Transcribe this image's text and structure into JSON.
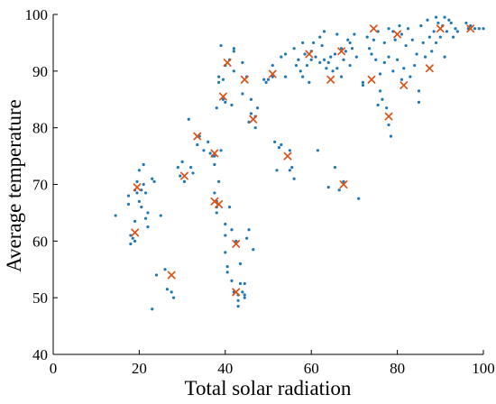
{
  "chart_data": {
    "type": "scatter",
    "title": "",
    "xlabel": "Total solar radiation",
    "ylabel": "Average temperature",
    "xlim": [
      0,
      100
    ],
    "ylim": [
      40,
      100
    ],
    "xticks": [
      "0",
      "20",
      "40",
      "60",
      "80",
      "100"
    ],
    "yticks": [
      "40",
      "50",
      "60",
      "70",
      "80",
      "90",
      "100"
    ],
    "grid": false,
    "legend": "none",
    "series": [
      {
        "marker": "dot",
        "color": "#1f77b4",
        "points": [
          [
            14.5,
            64.5
          ],
          [
            17.5,
            68
          ],
          [
            17.5,
            66.5
          ],
          [
            18,
            61
          ],
          [
            18,
            59.5
          ],
          [
            18.5,
            60.5
          ],
          [
            19,
            60
          ],
          [
            19,
            63.5
          ],
          [
            19.5,
            68.5
          ],
          [
            19.5,
            70.5
          ],
          [
            20,
            67
          ],
          [
            20,
            72.5
          ],
          [
            20.5,
            66
          ],
          [
            20.5,
            69
          ],
          [
            21,
            73.5
          ],
          [
            21,
            70
          ],
          [
            21.5,
            68.5
          ],
          [
            21.5,
            64
          ],
          [
            22,
            65
          ],
          [
            22,
            62.5
          ],
          [
            23,
            71
          ],
          [
            23,
            48
          ],
          [
            23.5,
            70.5
          ],
          [
            24,
            54
          ],
          [
            25,
            64.5
          ],
          [
            26,
            55
          ],
          [
            26.5,
            51.5
          ],
          [
            27.5,
            51
          ],
          [
            28,
            50
          ],
          [
            29,
            73
          ],
          [
            29.5,
            71.5
          ],
          [
            30,
            74
          ],
          [
            30.5,
            70.5
          ],
          [
            31.5,
            81.5
          ],
          [
            32,
            73
          ],
          [
            32.5,
            72
          ],
          [
            33.5,
            77
          ],
          [
            34,
            78.5
          ],
          [
            35,
            76
          ],
          [
            36,
            77.5
          ],
          [
            36.5,
            75.5
          ],
          [
            37,
            75
          ],
          [
            37.5,
            75
          ],
          [
            37.5,
            73.5
          ],
          [
            37.5,
            68.5
          ],
          [
            38,
            67
          ],
          [
            38,
            66
          ],
          [
            38,
            65
          ],
          [
            38.5,
            70.5
          ],
          [
            38.5,
            88
          ],
          [
            38.5,
            89
          ],
          [
            38,
            83.5
          ],
          [
            39,
            94.5
          ],
          [
            39,
            76
          ],
          [
            39.5,
            85
          ],
          [
            39.5,
            88.5
          ],
          [
            40,
            91
          ],
          [
            40,
            84.5
          ],
          [
            40,
            63
          ],
          [
            40,
            61
          ],
          [
            40,
            58
          ],
          [
            40.5,
            55.5
          ],
          [
            40.5,
            54.5
          ],
          [
            41,
            92
          ],
          [
            41,
            66
          ],
          [
            41.5,
            84
          ],
          [
            41.5,
            62
          ],
          [
            41.5,
            53
          ],
          [
            42,
            93.5
          ],
          [
            42,
            94
          ],
          [
            42,
            90
          ],
          [
            42,
            51
          ],
          [
            42.5,
            60
          ],
          [
            43,
            49.5
          ],
          [
            43,
            48.5
          ],
          [
            43,
            50.5
          ],
          [
            43.5,
            56
          ],
          [
            43.5,
            52.5
          ],
          [
            44,
            51
          ],
          [
            44,
            91.5
          ],
          [
            44,
            86
          ],
          [
            44.5,
            50.5
          ],
          [
            44.5,
            50
          ],
          [
            45,
            60.5
          ],
          [
            45,
            89
          ],
          [
            45.5,
            81
          ],
          [
            45.5,
            62
          ],
          [
            46,
            85
          ],
          [
            46,
            82.5
          ],
          [
            46.5,
            58.5
          ],
          [
            47,
            82
          ],
          [
            47,
            80
          ],
          [
            47.5,
            83.5
          ],
          [
            49,
            88.5
          ],
          [
            49.5,
            88
          ],
          [
            50,
            88.5
          ],
          [
            51,
            91
          ],
          [
            51,
            89
          ],
          [
            51.5,
            77.5
          ],
          [
            52,
            72.5
          ],
          [
            52.5,
            76.5
          ],
          [
            53,
            77
          ],
          [
            53,
            92.5
          ],
          [
            54,
            89
          ],
          [
            54,
            93
          ],
          [
            55,
            76
          ],
          [
            55,
            72.5
          ],
          [
            55.5,
            73
          ],
          [
            56,
            94
          ],
          [
            56,
            71
          ],
          [
            56.5,
            91
          ],
          [
            57,
            92
          ],
          [
            57.5,
            90
          ],
          [
            58,
            95
          ],
          [
            58,
            89
          ],
          [
            58.5,
            93
          ],
          [
            59,
            91
          ],
          [
            59.5,
            88
          ],
          [
            60,
            93.5
          ],
          [
            60,
            92
          ],
          [
            60.5,
            95
          ],
          [
            61,
            92.5
          ],
          [
            61.5,
            76
          ],
          [
            62,
            96
          ],
          [
            62,
            91.5
          ],
          [
            62.5,
            94.5
          ],
          [
            63,
            97
          ],
          [
            63,
            92
          ],
          [
            63.5,
            90.5
          ],
          [
            64,
            91.5
          ],
          [
            64,
            69.5
          ],
          [
            64.5,
            92.5
          ],
          [
            65,
            90
          ],
          [
            65.5,
            73
          ],
          [
            65.5,
            93
          ],
          [
            66,
            96.5
          ],
          [
            66,
            90.5
          ],
          [
            66.5,
            69
          ],
          [
            67,
            94
          ],
          [
            67,
            89
          ],
          [
            67.5,
            92
          ],
          [
            67.5,
            70.5
          ],
          [
            68,
            93.5
          ],
          [
            68.5,
            95.5
          ],
          [
            69,
            95
          ],
          [
            69,
            91
          ],
          [
            69.5,
            94
          ],
          [
            70,
            96.5
          ],
          [
            70.5,
            92.5
          ],
          [
            71,
            67.5
          ],
          [
            72,
            88
          ],
          [
            72,
            87.5
          ],
          [
            73,
            96
          ],
          [
            73.5,
            94
          ],
          [
            74,
            93
          ],
          [
            74.5,
            95.5
          ],
          [
            75,
            92
          ],
          [
            75.5,
            97
          ],
          [
            75.5,
            84
          ],
          [
            76,
            89.5
          ],
          [
            76,
            86.5
          ],
          [
            76.5,
            85
          ],
          [
            77,
            95
          ],
          [
            77,
            91.5
          ],
          [
            77.5,
            83.5
          ],
          [
            78,
            97.5
          ],
          [
            78,
            92.5
          ],
          [
            78,
            80.5
          ],
          [
            78.5,
            78.5
          ],
          [
            79,
            97
          ],
          [
            79,
            90
          ],
          [
            79.5,
            95.5
          ],
          [
            80,
            92
          ],
          [
            80.5,
            98
          ],
          [
            81,
            96.5
          ],
          [
            81,
            88.5
          ],
          [
            81.5,
            90.5
          ],
          [
            82,
            94.5
          ],
          [
            82.5,
            97.5
          ],
          [
            83,
            89
          ],
          [
            83.5,
            95.5
          ],
          [
            84,
            91
          ],
          [
            84.5,
            93
          ],
          [
            85,
            86.5
          ],
          [
            85,
            84.5
          ],
          [
            85.5,
            98
          ],
          [
            86,
            95
          ],
          [
            86.5,
            92.5
          ],
          [
            87,
            99
          ],
          [
            87.5,
            96
          ],
          [
            88,
            93.5
          ],
          [
            88.5,
            97
          ],
          [
            89,
            99.5
          ],
          [
            89,
            95
          ],
          [
            89.5,
            98.5
          ],
          [
            90,
            96
          ],
          [
            90.5,
            98
          ],
          [
            91,
            99.5
          ],
          [
            91,
            92.5
          ],
          [
            91.5,
            97
          ],
          [
            92,
            99
          ],
          [
            92.5,
            98.5
          ],
          [
            93,
            96
          ],
          [
            93.5,
            97.5
          ],
          [
            94,
            97
          ],
          [
            96,
            98.5
          ],
          [
            96.5,
            97.5
          ],
          [
            97,
            98
          ],
          [
            98,
            97.5
          ],
          [
            99,
            97.5
          ],
          [
            100,
            97.5
          ],
          [
            19,
            69
          ],
          [
            44.5,
            52.5
          ]
        ]
      },
      {
        "marker": "x",
        "color": "#d95319",
        "points": [
          [
            19,
            61.5
          ],
          [
            19.5,
            69.5
          ],
          [
            27.5,
            54
          ],
          [
            30.5,
            71.5
          ],
          [
            33.5,
            78.5
          ],
          [
            37.5,
            75.5
          ],
          [
            37.5,
            67
          ],
          [
            38.5,
            66.5
          ],
          [
            39.5,
            85.5
          ],
          [
            40.5,
            91.5
          ],
          [
            42.5,
            59.5
          ],
          [
            42.5,
            51
          ],
          [
            44.5,
            88.5
          ],
          [
            46.5,
            81.5
          ],
          [
            51,
            89.5
          ],
          [
            54.5,
            75
          ],
          [
            59.5,
            93
          ],
          [
            64.5,
            88.5
          ],
          [
            67,
            93.5
          ],
          [
            67.5,
            70
          ],
          [
            74,
            88.5
          ],
          [
            74.5,
            97.5
          ],
          [
            78,
            82
          ],
          [
            80,
            96.5
          ],
          [
            81.5,
            87.5
          ],
          [
            87.5,
            90.5
          ],
          [
            90,
            97.5
          ],
          [
            97,
            97.5
          ]
        ]
      }
    ]
  }
}
